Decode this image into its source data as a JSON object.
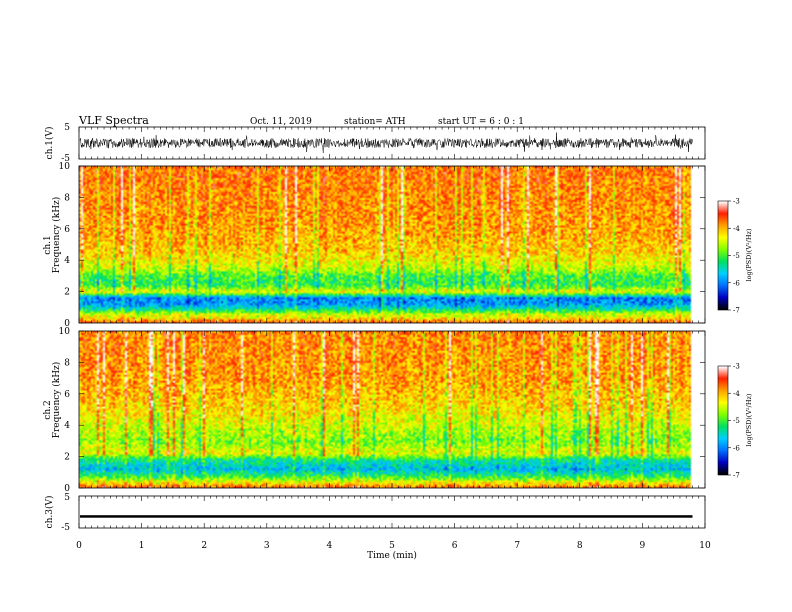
{
  "header": {
    "title": "VLF  Spectra",
    "date": "Oct. 11, 2019",
    "station": "station= ATH",
    "start": "start  UT  =    6  : 0   : 1"
  },
  "chart_data": {
    "type": "heatmap",
    "title": "VLF  Spectra",
    "xlabel": "Time  (min)",
    "xlim": [
      0,
      10
    ],
    "x_ticks": [
      "0",
      "1",
      "2",
      "3",
      "4",
      "5",
      "6",
      "7",
      "8",
      "9",
      "10"
    ],
    "data_end_min": 9.8,
    "panels": [
      {
        "id": "ch1-waveform",
        "type": "line",
        "ylabel": "ch.1(V)",
        "ylim": [
          -5,
          5
        ],
        "y_ticks": [
          "5",
          "-5"
        ],
        "amplitude_band": [
          -1.5,
          1.5
        ]
      },
      {
        "id": "ch1-spectrogram",
        "type": "heatmap",
        "ylabel": "ch.1\nFrequency (kHz)",
        "ylim": [
          0,
          10
        ],
        "y_ticks": [
          "0",
          "2",
          "4",
          "6",
          "8",
          "10"
        ],
        "level_profile": [
          {
            "freq_khz": 0.0,
            "logpsd": -3.5
          },
          {
            "freq_khz": 0.3,
            "logpsd": -4.2
          },
          {
            "freq_khz": 0.6,
            "logpsd": -4.6
          },
          {
            "freq_khz": 0.9,
            "logpsd": -5.4
          },
          {
            "freq_khz": 1.2,
            "logpsd": -5.9
          },
          {
            "freq_khz": 1.6,
            "logpsd": -6.0
          },
          {
            "freq_khz": 2.0,
            "logpsd": -4.3
          },
          {
            "freq_khz": 2.4,
            "logpsd": -5.1
          },
          {
            "freq_khz": 3.0,
            "logpsd": -5.0
          },
          {
            "freq_khz": 3.5,
            "logpsd": -4.5
          },
          {
            "freq_khz": 4.5,
            "logpsd": -4.1
          },
          {
            "freq_khz": 6.0,
            "logpsd": -3.9
          },
          {
            "freq_khz": 8.0,
            "logpsd": -3.8
          },
          {
            "freq_khz": 10.0,
            "logpsd": -3.7
          }
        ],
        "colorbar": {
          "label": "log(PSD)(V²/Hz)",
          "range": [
            -7,
            -3
          ],
          "ticks": [
            "-3",
            "-4",
            "-5",
            "-6",
            "-7"
          ]
        }
      },
      {
        "id": "ch2-spectrogram",
        "type": "heatmap",
        "ylabel": "ch.2\nFrequency (kHz)",
        "ylim": [
          0,
          10
        ],
        "y_ticks": [
          "0",
          "2",
          "4",
          "6",
          "8",
          "10"
        ],
        "level_profile": [
          {
            "freq_khz": 0.0,
            "logpsd": -3.6
          },
          {
            "freq_khz": 0.4,
            "logpsd": -4.4
          },
          {
            "freq_khz": 0.8,
            "logpsd": -5.2
          },
          {
            "freq_khz": 1.2,
            "logpsd": -5.7
          },
          {
            "freq_khz": 1.8,
            "logpsd": -5.3
          },
          {
            "freq_khz": 2.2,
            "logpsd": -4.4
          },
          {
            "freq_khz": 3.0,
            "logpsd": -4.8
          },
          {
            "freq_khz": 4.0,
            "logpsd": -4.5
          },
          {
            "freq_khz": 5.0,
            "logpsd": -4.2
          },
          {
            "freq_khz": 7.0,
            "logpsd": -3.9
          },
          {
            "freq_khz": 10.0,
            "logpsd": -3.8
          }
        ],
        "colorbar": {
          "label": "log(PSD)(V²/Hz)",
          "range": [
            -7,
            -3
          ],
          "ticks": [
            "-3",
            "-4",
            "-5",
            "-6",
            "-7"
          ]
        }
      },
      {
        "id": "ch3-waveform",
        "type": "line",
        "ylabel": "ch.3(V)",
        "ylim": [
          -5,
          5
        ],
        "y_ticks": [
          "5",
          "-5"
        ],
        "amplitude_band": [
          -0.2,
          0.2
        ],
        "offset": -1.2
      }
    ],
    "colormap": [
      "#000000",
      "#0000c0",
      "#0070ff",
      "#00d0ff",
      "#00e060",
      "#80ff00",
      "#ffff00",
      "#ffa000",
      "#ff2000",
      "#ffffff"
    ]
  }
}
